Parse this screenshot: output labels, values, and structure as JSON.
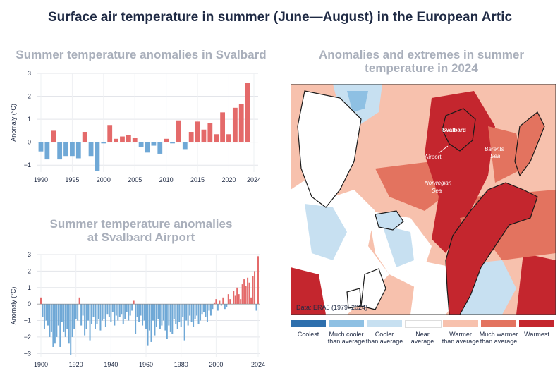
{
  "title": "Surface air temperature in summer (June—August) in the European Artic",
  "left_top_title": "Summer temperature anomalies in Svalbard",
  "left_bottom_title_line1": "Summer temperature anomalies",
  "left_bottom_title_line2": "at Svalbard Airport",
  "map_title_line1": "Anomalies and extremes in summer",
  "map_title_line2": "temperature in 2024",
  "map": {
    "source": "Data: ERA5 (1979–2024)",
    "labels": {
      "svalbard": "Svalbard",
      "airport": "Airport",
      "barents": "Barents",
      "barents2": "Sea",
      "norwegian": "Norwegian",
      "norwegian2": "Sea"
    }
  },
  "colors": {
    "positive": "#e46a6a",
    "negative": "#6fa8d6",
    "coolest": "#2e6fad",
    "much_cooler": "#8ec0e3",
    "cooler": "#c7e0f1",
    "near": "#ffffff",
    "warmer": "#f7c1ad",
    "much_warmer": "#e3735f",
    "warmest": "#c4262e"
  },
  "legend": [
    {
      "line1": "Coolest",
      "line2": "",
      "color": "#2e6fad"
    },
    {
      "line1": "Much cooler",
      "line2": "than average",
      "color": "#8ec0e3"
    },
    {
      "line1": "Cooler",
      "line2": "than average",
      "color": "#c7e0f1"
    },
    {
      "line1": "Near",
      "line2": "average",
      "color": "#ffffff"
    },
    {
      "line1": "Warmer",
      "line2": "than average",
      "color": "#f7c1ad"
    },
    {
      "line1": "Much warmer",
      "line2": "than average",
      "color": "#e3735f"
    },
    {
      "line1": "Warmest",
      "line2": "",
      "color": "#c4262e"
    }
  ],
  "chart_data": [
    {
      "type": "bar",
      "title": "Summer temperature anomalies in Svalbard",
      "ylabel": "Anomaly (°C)",
      "xlabel": "",
      "x_ticks": [
        "1990",
        "1995",
        "2000",
        "2005",
        "2010",
        "2015",
        "2020",
        "2024"
      ],
      "y_ticks": [
        "3",
        "2",
        "1",
        "0",
        "−1"
      ],
      "ylim": [
        -1.3,
        3
      ],
      "grid": true,
      "x": [
        1990,
        1991,
        1992,
        1993,
        1994,
        1995,
        1996,
        1997,
        1998,
        1999,
        2000,
        2001,
        2002,
        2003,
        2004,
        2005,
        2006,
        2007,
        2008,
        2009,
        2010,
        2011,
        2012,
        2013,
        2014,
        2015,
        2016,
        2017,
        2018,
        2019,
        2020,
        2021,
        2022,
        2023,
        2024
      ],
      "values": [
        -0.4,
        -0.75,
        0.5,
        -0.75,
        -0.6,
        -0.6,
        -0.7,
        0.45,
        -0.6,
        -1.25,
        -0.05,
        0.75,
        0.15,
        0.25,
        0.3,
        0.2,
        -0.2,
        -0.45,
        -0.15,
        -0.5,
        0.15,
        -0.05,
        0.95,
        -0.3,
        0.45,
        0.9,
        0.55,
        0.85,
        0.35,
        1.3,
        0.35,
        1.5,
        1.65,
        2.6,
        0.0
      ]
    },
    {
      "type": "bar",
      "title": "Summer temperature anomalies at Svalbard Airport",
      "ylabel": "Anomaly (°C)",
      "xlabel": "",
      "x_ticks": [
        "1900",
        "1920",
        "1940",
        "1960",
        "1980",
        "2000",
        "2024"
      ],
      "y_ticks": [
        "3",
        "2",
        "1",
        "0",
        "−1",
        "−2",
        "−3"
      ],
      "ylim": [
        -3.2,
        3
      ],
      "grid": true,
      "x_start": 1900,
      "values": [
        0.4,
        -0.8,
        -1.5,
        -1.0,
        -1.3,
        -2.0,
        -1.7,
        -2.6,
        -2.4,
        -2.0,
        -1.3,
        -2.6,
        -1.1,
        -1.7,
        -2.0,
        -1.5,
        -2.4,
        -3.1,
        -2.0,
        -1.5,
        -0.9,
        -1.0,
        0.4,
        -1.3,
        -0.7,
        -1.9,
        -1.5,
        -1.0,
        -2.2,
        -1.2,
        -0.8,
        -1.5,
        -1.2,
        -0.9,
        -1.6,
        -1.0,
        -0.9,
        -1.4,
        -0.6,
        -0.8,
        -1.1,
        -0.5,
        -1.3,
        -0.7,
        -1.0,
        -0.8,
        -0.6,
        -1.2,
        -0.9,
        -0.5,
        -1.0,
        -0.7,
        -0.4,
        0.2,
        -1.8,
        -0.8,
        -1.1,
        -0.7,
        -1.3,
        -1.0,
        -1.5,
        -2.5,
        -1.6,
        -2.3,
        -1.0,
        -1.9,
        -1.4,
        -0.9,
        -1.5,
        -1.3,
        -1.0,
        -1.6,
        -2.1,
        -1.3,
        -1.7,
        -1.8,
        -0.9,
        -1.2,
        -1.5,
        -1.1,
        -1.4,
        -0.8,
        -2.2,
        -1.0,
        -1.3,
        -0.7,
        -1.1,
        -1.4,
        -0.9,
        -0.7,
        -1.2,
        -1.0,
        -0.6,
        -0.5,
        -0.8,
        -1.1,
        -0.4,
        -0.7,
        -0.3,
        0.1,
        0.3,
        -0.4,
        0.2,
        -0.1,
        0.4,
        -0.3,
        -0.2,
        0.6,
        0.3,
        0.0,
        0.8,
        0.5,
        1.0,
        0.6,
        0.3,
        1.2,
        1.5,
        1.1,
        1.6,
        1.3,
        0.4,
        1.7,
        2.0,
        -0.4,
        2.9
      ]
    }
  ]
}
